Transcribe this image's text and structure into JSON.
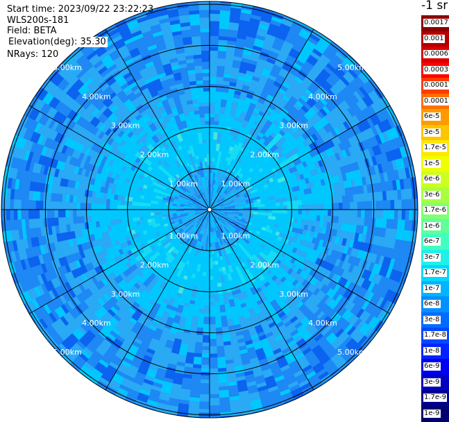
{
  "header": {
    "start_time": "Start time: 2023/09/22 23:22:23",
    "instrument": "WLS200s-181",
    "field": "Field: BETA",
    "elevation": "Elevation(deg): 35.30",
    "nrays": "NRays: 120"
  },
  "colorbar": {
    "unit_label": "-1 sr",
    "bands": [
      {
        "label": "0.0017",
        "color": "#8b0000"
      },
      {
        "label": "0.001",
        "color": "#b40000"
      },
      {
        "label": "0.0006",
        "color": "#d80000"
      },
      {
        "label": "0.0003",
        "color": "#ff0000"
      },
      {
        "label": "0.00017",
        "color": "#ff3a00"
      },
      {
        "label": "0.0001",
        "color": "#ff6e00"
      },
      {
        "label": "6e-5",
        "color": "#ff9a00"
      },
      {
        "label": "3e-5",
        "color": "#ffc400"
      },
      {
        "label": "1.7e-5",
        "color": "#ffe800"
      },
      {
        "label": "1e-5",
        "color": "#f0ff00"
      },
      {
        "label": "6e-6",
        "color": "#ccff20"
      },
      {
        "label": "3e-6",
        "color": "#a8ff40"
      },
      {
        "label": "1.7e-6",
        "color": "#84ff70"
      },
      {
        "label": "1e-6",
        "color": "#60ff98"
      },
      {
        "label": "6e-7",
        "color": "#40ffc0"
      },
      {
        "label": "3e-7",
        "color": "#20f0e8"
      },
      {
        "label": "1.7e-7",
        "color": "#00d8ff"
      },
      {
        "label": "1e-7",
        "color": "#00b4ff"
      },
      {
        "label": "6e-8",
        "color": "#0090ff"
      },
      {
        "label": "3e-8",
        "color": "#006cff"
      },
      {
        "label": "1.7e-8",
        "color": "#0048ff"
      },
      {
        "label": "1e-8",
        "color": "#0024ff"
      },
      {
        "label": "6e-9",
        "color": "#0000f0"
      },
      {
        "label": "3e-9",
        "color": "#0000c0"
      },
      {
        "label": "1.7e-9",
        "color": "#000090"
      },
      {
        "label": "1e-9",
        "color": "#000070"
      }
    ]
  },
  "ppi": {
    "range_rings_km": [
      1,
      2,
      3,
      4,
      5
    ],
    "ring_labels": [
      "1.00km",
      "2.00km",
      "3.00km",
      "4.00km",
      "5.00km"
    ],
    "rays": 120,
    "colors": {
      "background": "#ffffff",
      "grid": "#000000",
      "ring_label": "#ffffff",
      "deep_blue": "#0b63f0",
      "mid_blue": "#1e88f4",
      "light_blue": "#2aa9f5",
      "cyan": "#00c8ff",
      "aqua": "#16dcf3",
      "pale": "#42e6df"
    }
  }
}
